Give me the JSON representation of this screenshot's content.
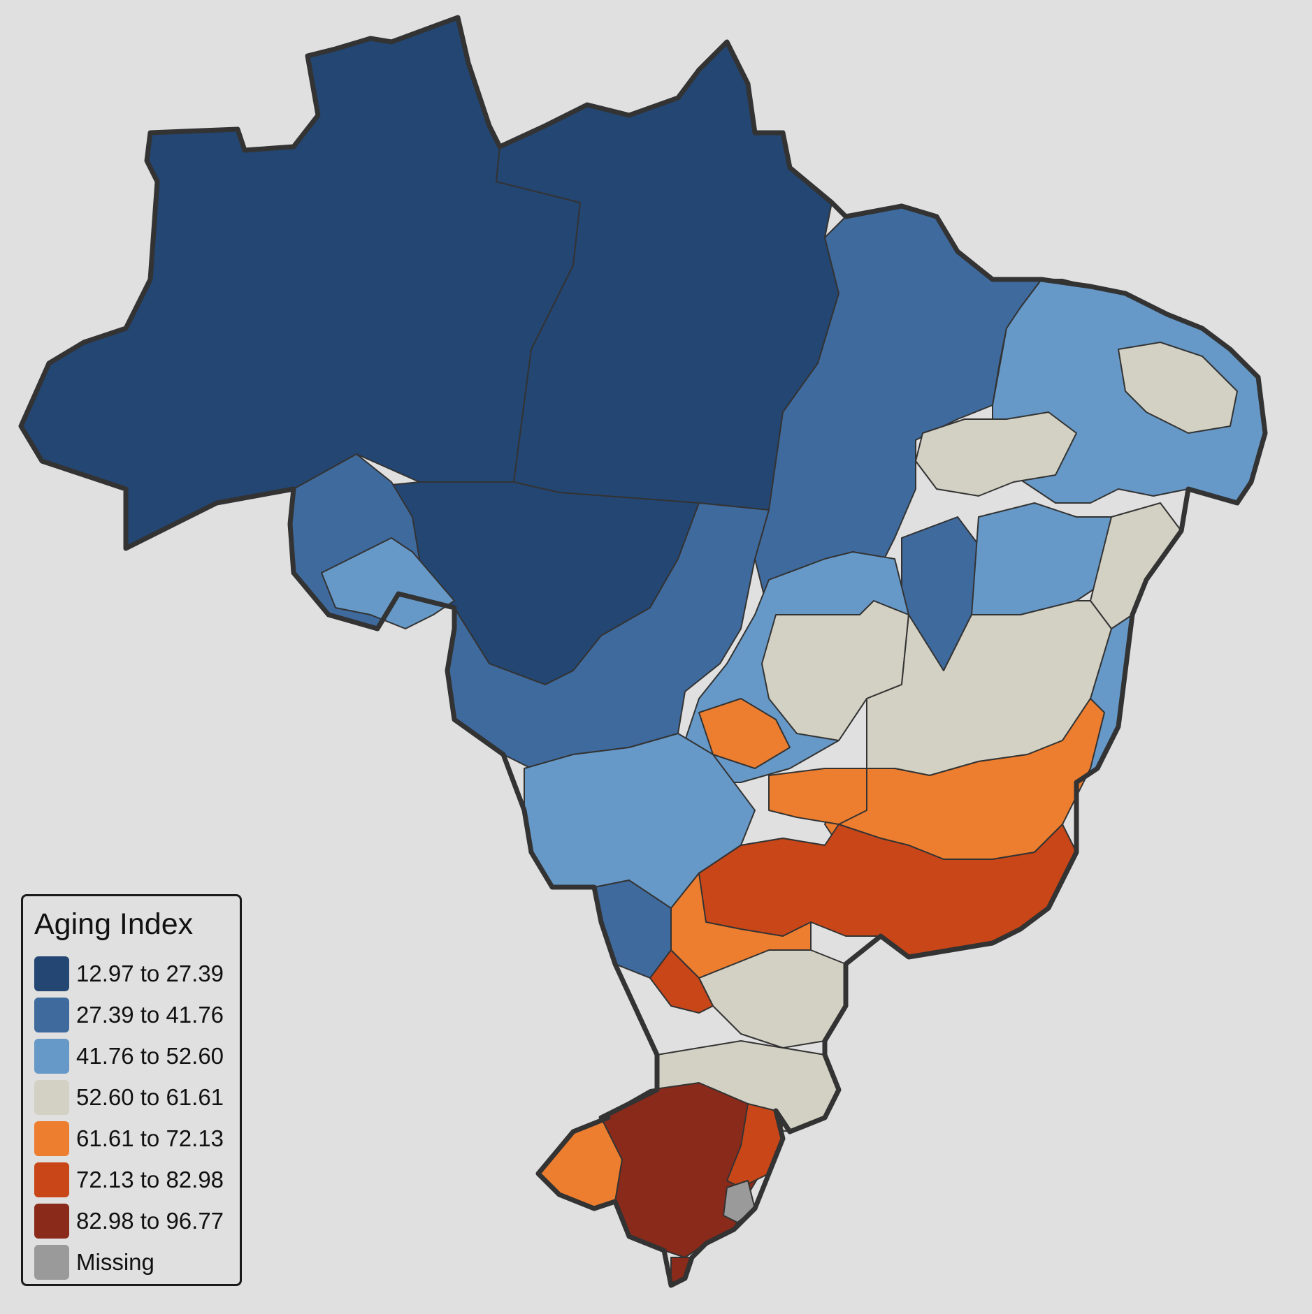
{
  "legend": {
    "title": "Aging Index",
    "items": [
      {
        "label": "12.97 to 27.39",
        "color": "#234673"
      },
      {
        "label": "27.39 to 41.76",
        "color": "#3f6a9d"
      },
      {
        "label": "41.76 to 52.60",
        "color": "#6699c8"
      },
      {
        "label": "52.60 to 61.61",
        "color": "#d3d1c4"
      },
      {
        "label": "61.61 to 72.13",
        "color": "#ee7e2f"
      },
      {
        "label": "72.13 to 82.98",
        "color": "#c84618"
      },
      {
        "label": "82.98 to 96.77",
        "color": "#8a2a1a"
      },
      {
        "label": "Missing",
        "color": "#9a9a9a"
      }
    ]
  },
  "map": {
    "background": "#e0e0e0",
    "border_color": "#333333",
    "regions": [
      {
        "class": 0,
        "area": "north-west"
      },
      {
        "class": 0,
        "area": "north-central"
      },
      {
        "class": 0,
        "area": "north-east-amazon"
      },
      {
        "class": 0,
        "area": "center-west-north"
      },
      {
        "class": 1,
        "area": "maranhao-coast"
      },
      {
        "class": 1,
        "area": "rondonia-acre-south"
      },
      {
        "class": 1,
        "area": "mato-grosso-south"
      },
      {
        "class": 1,
        "area": "tocantins"
      },
      {
        "class": 1,
        "area": "bahia-west"
      },
      {
        "class": 1,
        "area": "ms-south"
      },
      {
        "class": 2,
        "area": "northeast-inland"
      },
      {
        "class": 2,
        "area": "rondonia-east"
      },
      {
        "class": 2,
        "area": "goias-south"
      },
      {
        "class": 2,
        "area": "mato-grosso-do-sul"
      },
      {
        "class": 2,
        "area": "santa-catarina-west"
      },
      {
        "class": 3,
        "area": "northeast-sertao"
      },
      {
        "class": 3,
        "area": "minas-north"
      },
      {
        "class": 3,
        "area": "parana-east"
      },
      {
        "class": 4,
        "area": "minas-central"
      },
      {
        "class": 4,
        "area": "sao-paulo-west"
      },
      {
        "class": 4,
        "area": "rio-grande-do-sul-west"
      },
      {
        "class": 5,
        "area": "sao-paulo-rio"
      },
      {
        "class": 6,
        "area": "rio-grande-do-sul-center"
      },
      {
        "class": 7,
        "area": "porto-alegre"
      }
    ]
  }
}
